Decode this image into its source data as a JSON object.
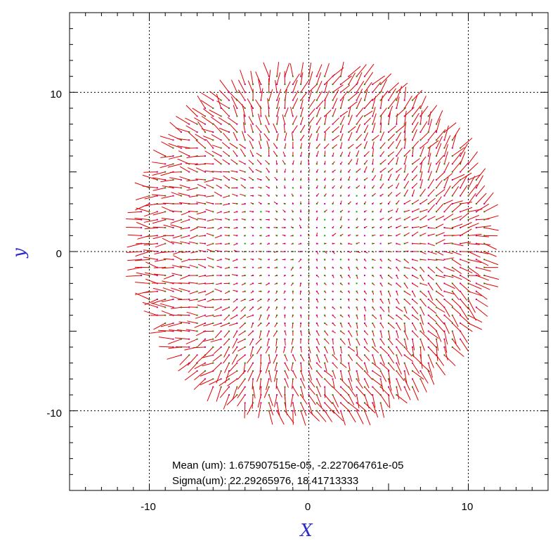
{
  "chart_data": {
    "type": "scatter",
    "subtype": "vector-field",
    "xlabel": "X",
    "ylabel": "y",
    "xlim": [
      -15,
      15
    ],
    "ylim": [
      -15,
      15
    ],
    "xticks": [
      -10,
      0,
      10
    ],
    "yticks": [
      -10,
      0,
      10
    ],
    "xtick_labels": [
      "-10",
      "0",
      "10"
    ],
    "ytick_labels": [
      "-10",
      "0",
      "10"
    ],
    "grid": true,
    "grid_style": "dotted",
    "field_region": {
      "shape": "disc",
      "center": [
        0.3,
        0.5
      ],
      "radius": 11.0
    },
    "grid_spacing": 0.5,
    "arrow_color": "#e00000",
    "marker_colors": [
      "#00aa00",
      "#cc00cc"
    ],
    "annotations": [
      {
        "label": "Mean (um): ",
        "value": "1.675907515e-05, -2.227064761e-05"
      },
      {
        "label": "Sigma(um): ",
        "value": "22.29265976, 18.41713333"
      }
    ]
  }
}
